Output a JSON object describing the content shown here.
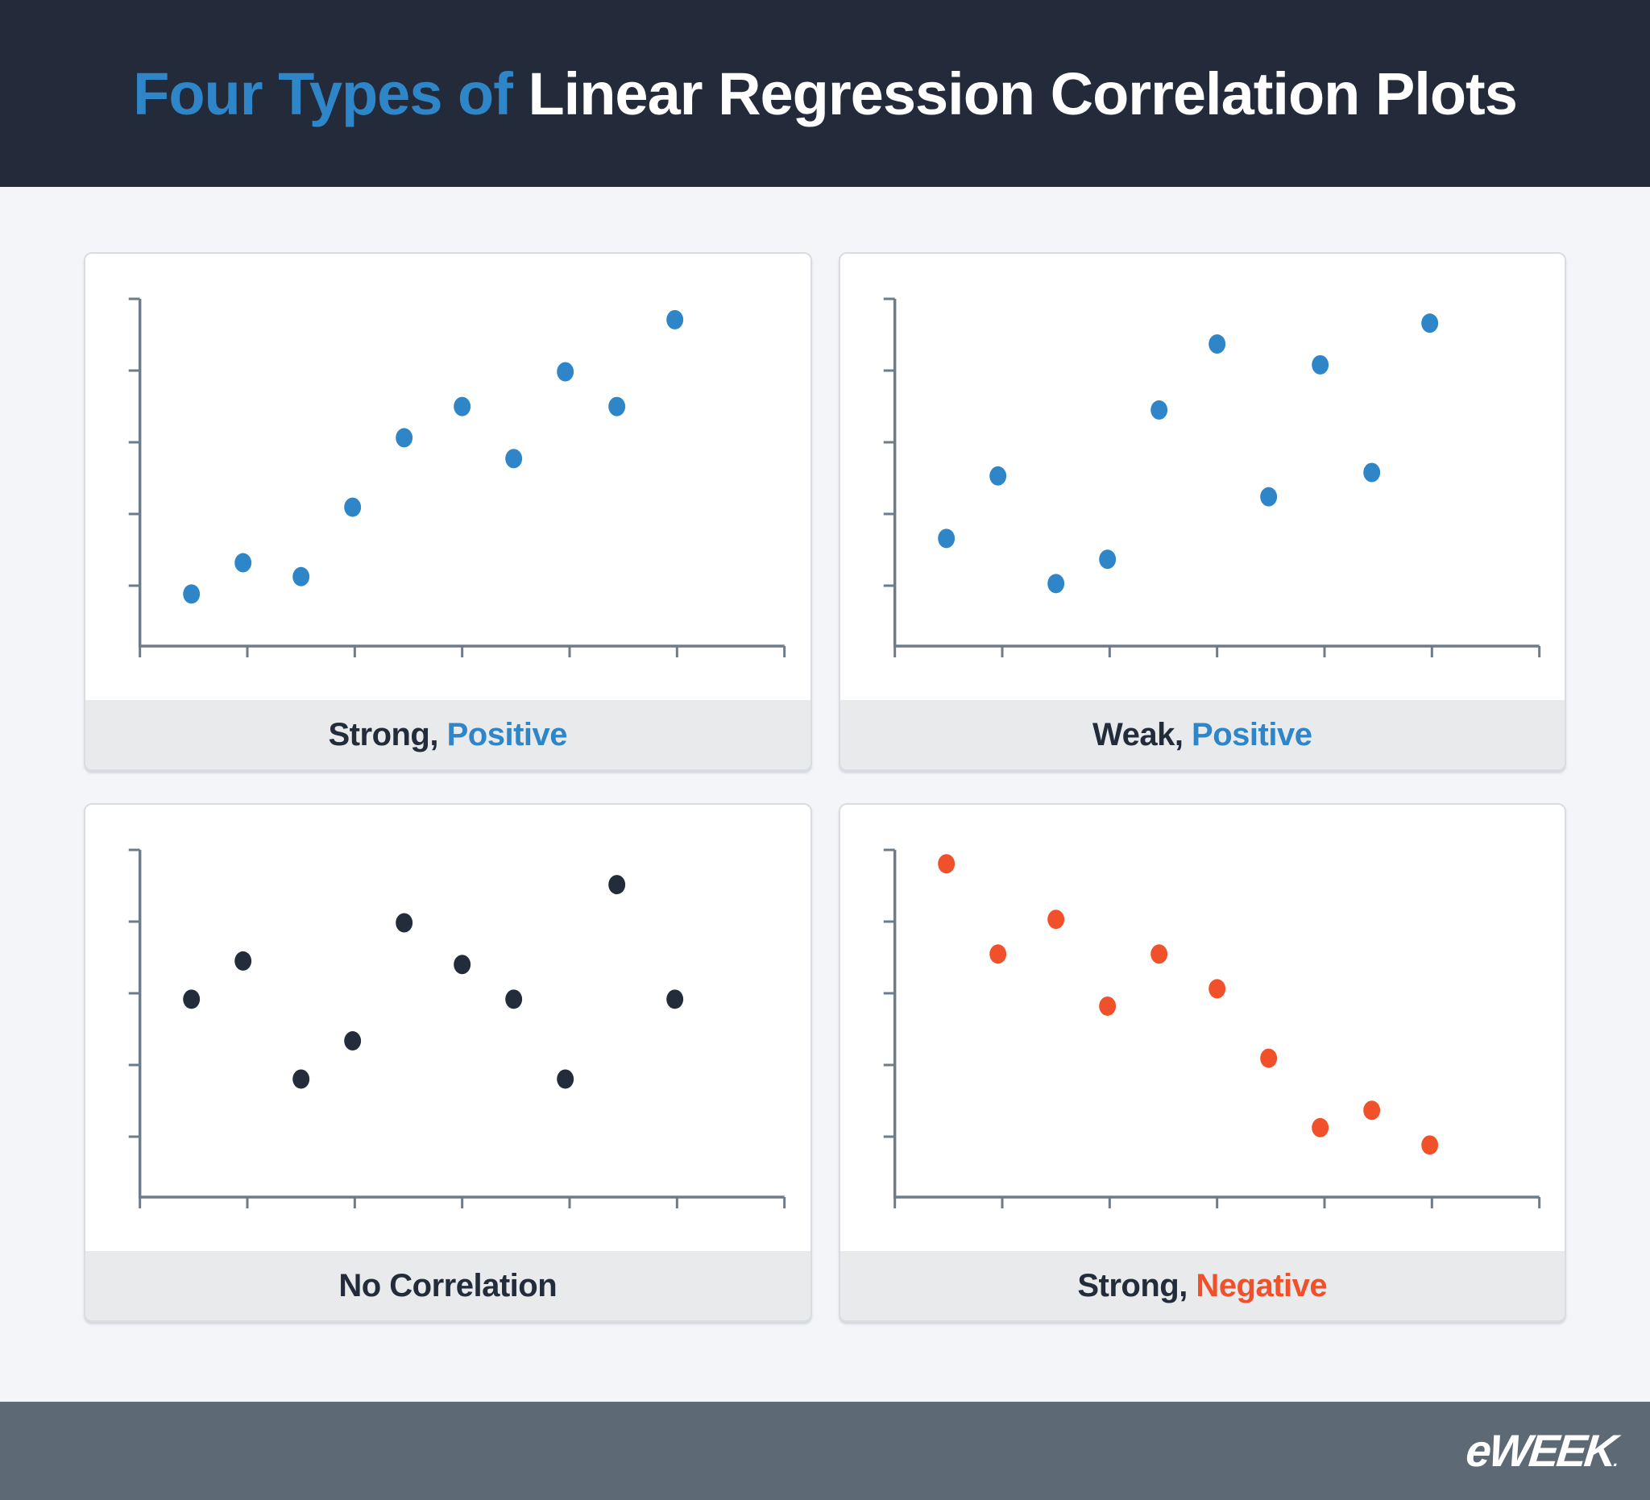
{
  "header": {
    "title_highlight": "Four Types of",
    "title_rest": " Linear Regression Correlation Plots"
  },
  "footer": {
    "logo": "eWEEK",
    "logo_dot": "."
  },
  "colors": {
    "header_bg": "#232B3A",
    "page_bg": "#F3F5F9",
    "card_bg": "#FFFFFF",
    "card_border": "#D9DCE1",
    "caption_bg": "#E8EAEB",
    "axis": "#6E7B89",
    "text_dark": "#232C3A",
    "blue": "#2E86C8",
    "orange": "#F0512B",
    "footer_bg": "#5D6974",
    "logo_color": "#FFFFFF"
  },
  "chart_data": [
    {
      "type": "scatter",
      "name": "strong-positive",
      "caption": {
        "prefix": "Strong,",
        "suffix": "Positive"
      },
      "accent": "#2E86C8",
      "dot_color": "#2E86C8",
      "x": [
        0.8,
        1.6,
        2.5,
        3.3,
        4.1,
        5.0,
        5.8,
        6.6,
        7.4,
        8.3
      ],
      "y": [
        1.5,
        2.4,
        2.0,
        4.0,
        6.0,
        6.9,
        5.4,
        7.9,
        6.9,
        9.4
      ],
      "xlim": [
        0,
        10
      ],
      "ylim": [
        0,
        10
      ],
      "x_tick_count": 7,
      "y_tick_count": 5,
      "grid": false,
      "axis_tick_labels": "none"
    },
    {
      "type": "scatter",
      "name": "weak-positive",
      "caption": {
        "prefix": "Weak,",
        "suffix": "Positive"
      },
      "accent": "#2E86C8",
      "dot_color": "#2E86C8",
      "x": [
        0.8,
        1.6,
        2.5,
        3.3,
        4.1,
        5.0,
        5.8,
        6.6,
        7.4,
        8.3
      ],
      "y": [
        3.1,
        4.9,
        1.8,
        2.5,
        6.8,
        8.7,
        4.3,
        8.1,
        5.0,
        9.3
      ],
      "xlim": [
        0,
        10
      ],
      "ylim": [
        0,
        10
      ],
      "x_tick_count": 7,
      "y_tick_count": 5,
      "grid": false,
      "axis_tick_labels": "none"
    },
    {
      "type": "scatter",
      "name": "no-correlation",
      "caption": {
        "prefix": "No Correlation",
        "suffix": ""
      },
      "accent": "#232C3A",
      "dot_color": "#232C3A",
      "x": [
        0.8,
        1.6,
        2.5,
        3.3,
        4.1,
        5.0,
        5.8,
        6.6,
        7.4,
        8.3
      ],
      "y": [
        5.7,
        6.8,
        3.4,
        4.5,
        7.9,
        6.7,
        5.7,
        3.4,
        9.0,
        5.7
      ],
      "xlim": [
        0,
        10
      ],
      "ylim": [
        0,
        10
      ],
      "x_tick_count": 7,
      "y_tick_count": 5,
      "grid": false,
      "axis_tick_labels": "none"
    },
    {
      "type": "scatter",
      "name": "strong-negative",
      "caption": {
        "prefix": "Strong,",
        "suffix": "Negative"
      },
      "accent": "#F0512B",
      "dot_color": "#F0512B",
      "x": [
        0.8,
        1.6,
        2.5,
        3.3,
        4.1,
        5.0,
        5.8,
        6.6,
        7.4,
        8.3
      ],
      "y": [
        9.6,
        7.0,
        8.0,
        5.5,
        7.0,
        6.0,
        4.0,
        2.0,
        2.5,
        1.5
      ],
      "xlim": [
        0,
        10
      ],
      "ylim": [
        0,
        10
      ],
      "x_tick_count": 7,
      "y_tick_count": 5,
      "grid": false,
      "axis_tick_labels": "none"
    }
  ]
}
